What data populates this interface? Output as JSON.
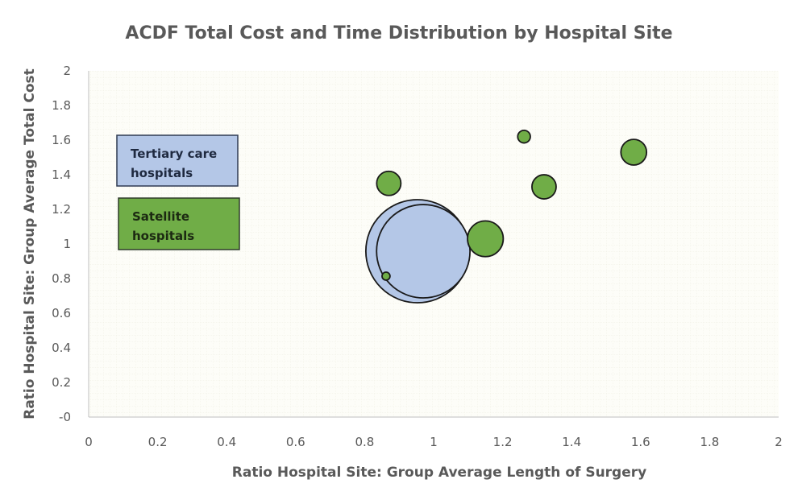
{
  "chart_data": {
    "type": "scatter",
    "subtype": "bubble",
    "title": "ACDF Total Cost and Time Distribution by Hospital Site",
    "xlabel": "Ratio Hospital Site: Group Average Length of Surgery",
    "ylabel": "Ratio Hospital Site: Group Average Total Cost",
    "xlim": [
      0,
      2
    ],
    "ylim": [
      0,
      2
    ],
    "xticks": [
      "0",
      "0.2",
      "0.4",
      "0.6",
      "0.8",
      "1",
      "1.2",
      "1.4",
      "1.6",
      "1.8",
      "2"
    ],
    "yticks": [
      "-0",
      "0.2",
      "0.4",
      "0.6",
      "0.8",
      "1",
      "1.2",
      "1.4",
      "1.6",
      "1.8",
      "2"
    ],
    "grid": "dotted",
    "legend_placement": "left",
    "series": [
      {
        "name": "Tertiary care hospitals",
        "color": "#b4c7e7",
        "points": [
          {
            "x": 0.953,
            "y": 0.958,
            "size": 100
          },
          {
            "x": 0.97,
            "y": 0.958,
            "size": 82
          }
        ]
      },
      {
        "name": "Satellite hospitals",
        "color": "#70ad47",
        "points": [
          {
            "x": 1.262,
            "y": 1.62,
            "size": 1.5
          },
          {
            "x": 1.58,
            "y": 1.53,
            "size": 6.2
          },
          {
            "x": 0.87,
            "y": 1.35,
            "size": 5.5
          },
          {
            "x": 1.32,
            "y": 1.33,
            "size": 5.5
          },
          {
            "x": 1.15,
            "y": 1.03,
            "size": 12
          },
          {
            "x": 0.862,
            "y": 0.814,
            "size": 0.6
          }
        ]
      }
    ],
    "legend": [
      {
        "line1": "Tertiary care",
        "line2": "hospitals",
        "color": "#b4c7e7"
      },
      {
        "line1": "Satellite",
        "line2": "hospitals",
        "color": "#70ad47"
      }
    ]
  }
}
